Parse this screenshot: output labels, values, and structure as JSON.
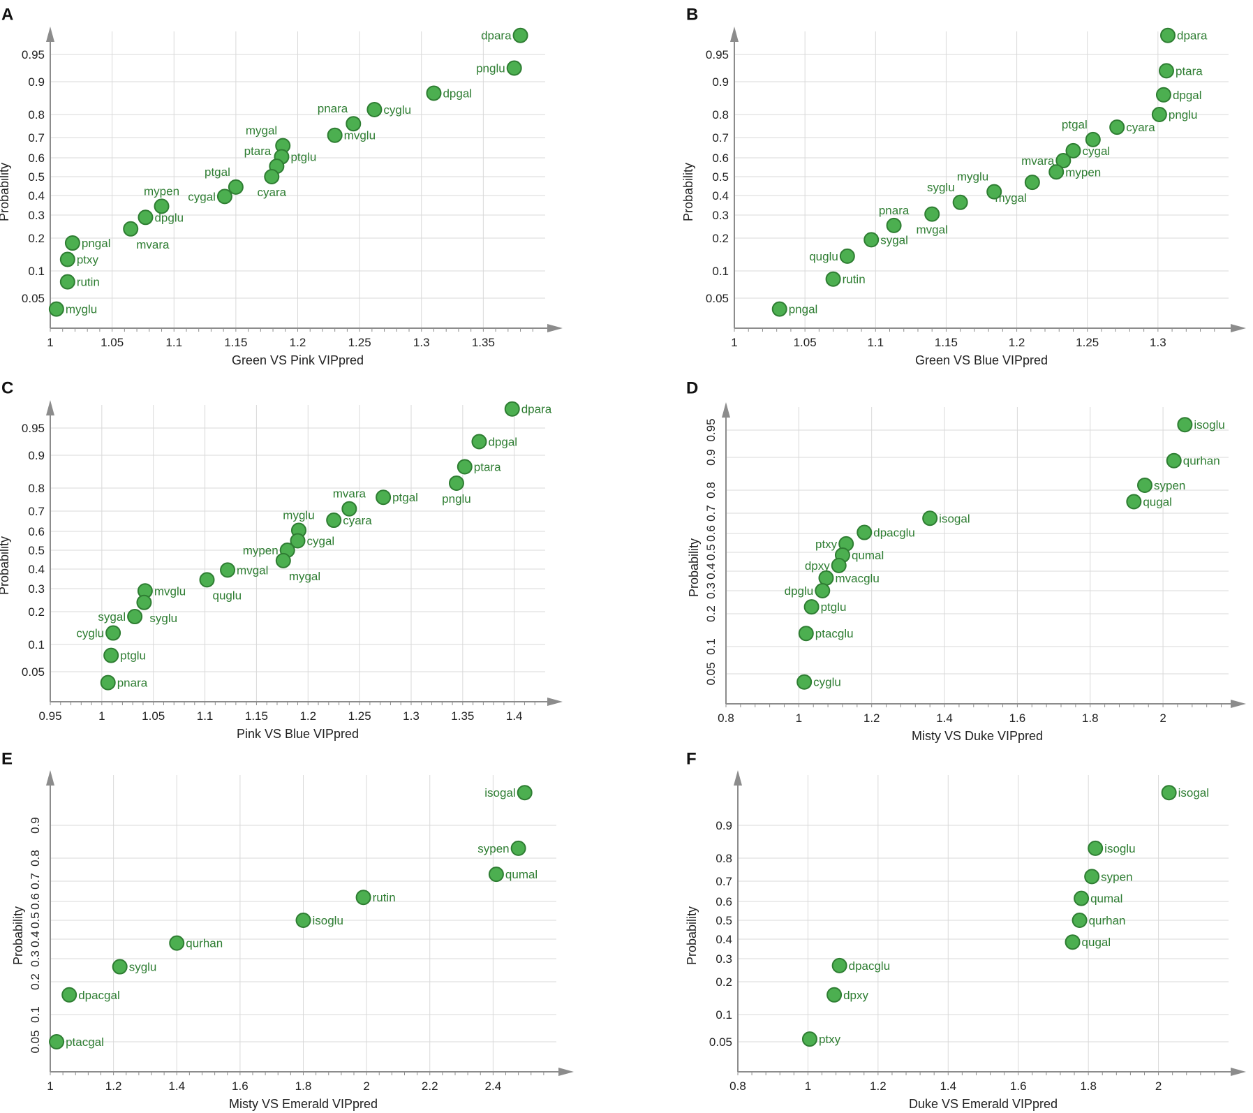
{
  "colors": {
    "point_fill": "#4caf50",
    "point_stroke": "#2e7d32",
    "label": "#2e7d32",
    "grid": "#d9d9d9",
    "axis": "#8c8c8c"
  },
  "chart_data": [
    {
      "panel": "A",
      "type": "scatter",
      "ylabel": "Probability",
      "xlabel": "Green VS Pink VIPpred",
      "xlim": [
        1,
        1.4
      ],
      "xticks": [
        "1",
        "1.05",
        "1.1",
        "1.15",
        "1.2",
        "1.25",
        "1.3",
        "1.35"
      ],
      "yticks": [
        "0.05",
        "0.1",
        "0.2",
        "0.3",
        "0.4",
        "0.5",
        "0.6",
        "0.7",
        "0.8",
        "0.9",
        "0.95"
      ],
      "points": [
        {
          "label": "dpara",
          "x": 1.38,
          "y": 0.985,
          "side": "left"
        },
        {
          "label": "pnglu",
          "x": 1.375,
          "y": 0.925,
          "side": "left"
        },
        {
          "label": "dpgal",
          "x": 1.31,
          "y": 0.865,
          "side": "right"
        },
        {
          "label": "cyglu",
          "x": 1.262,
          "y": 0.815,
          "side": "right"
        },
        {
          "label": "pnara",
          "x": 1.245,
          "y": 0.76,
          "side": "above-left"
        },
        {
          "label": "mvglu",
          "x": 1.23,
          "y": 0.71,
          "side": "right"
        },
        {
          "label": "mygal",
          "x": 1.188,
          "y": 0.66,
          "side": "above-left"
        },
        {
          "label": "ptglu",
          "x": 1.187,
          "y": 0.605,
          "side": "right"
        },
        {
          "label": "ptara",
          "x": 1.183,
          "y": 0.555,
          "side": "above-left"
        },
        {
          "label": "cyara",
          "x": 1.179,
          "y": 0.5,
          "side": "below"
        },
        {
          "label": "ptgal",
          "x": 1.15,
          "y": 0.445,
          "side": "above-left"
        },
        {
          "label": "cygal",
          "x": 1.141,
          "y": 0.395,
          "side": "left"
        },
        {
          "label": "mypen",
          "x": 1.09,
          "y": 0.345,
          "side": "above"
        },
        {
          "label": "dpglu",
          "x": 1.077,
          "y": 0.29,
          "side": "right"
        },
        {
          "label": "mvara",
          "x": 1.065,
          "y": 0.24,
          "side": "below-right"
        },
        {
          "label": "pngal",
          "x": 1.018,
          "y": 0.185,
          "side": "right"
        },
        {
          "label": "ptxy",
          "x": 1.014,
          "y": 0.135,
          "side": "right"
        },
        {
          "label": "rutin",
          "x": 1.014,
          "y": 0.08,
          "side": "right"
        },
        {
          "label": "myglu",
          "x": 1.005,
          "y": 0.03,
          "side": "right"
        }
      ]
    },
    {
      "panel": "B",
      "type": "scatter",
      "ylabel": "Probability",
      "xlabel": "Green VS Blue VIPpred",
      "xlim": [
        1,
        1.35
      ],
      "xticks": [
        "1",
        "1.05",
        "1.1",
        "1.15",
        "1.2",
        "1.25",
        "1.3"
      ],
      "yticks": [
        "0.05",
        "0.1",
        "0.2",
        "0.3",
        "0.4",
        "0.5",
        "0.6",
        "0.7",
        "0.8",
        "0.9",
        "0.95"
      ],
      "points": [
        {
          "label": "dpara",
          "x": 1.307,
          "y": 0.985,
          "side": "right"
        },
        {
          "label": "ptara",
          "x": 1.306,
          "y": 0.92,
          "side": "right"
        },
        {
          "label": "dpgal",
          "x": 1.304,
          "y": 0.86,
          "side": "right"
        },
        {
          "label": "pnglu",
          "x": 1.301,
          "y": 0.8,
          "side": "right"
        },
        {
          "label": "cyara",
          "x": 1.271,
          "y": 0.745,
          "side": "right"
        },
        {
          "label": "ptgal",
          "x": 1.254,
          "y": 0.69,
          "side": "above-left"
        },
        {
          "label": "cygal",
          "x": 1.24,
          "y": 0.635,
          "side": "right"
        },
        {
          "label": "mvara",
          "x": 1.233,
          "y": 0.585,
          "side": "left"
        },
        {
          "label": "mypen",
          "x": 1.228,
          "y": 0.525,
          "side": "right"
        },
        {
          "label": "mygal",
          "x": 1.211,
          "y": 0.47,
          "side": "below-left"
        },
        {
          "label": "myglu",
          "x": 1.184,
          "y": 0.42,
          "side": "above-left"
        },
        {
          "label": "syglu",
          "x": 1.16,
          "y": 0.365,
          "side": "above-left"
        },
        {
          "label": "mvgal",
          "x": 1.14,
          "y": 0.305,
          "side": "below"
        },
        {
          "label": "pnara",
          "x": 1.113,
          "y": 0.255,
          "side": "above"
        },
        {
          "label": "sygal",
          "x": 1.097,
          "y": 0.195,
          "side": "right"
        },
        {
          "label": "quglu",
          "x": 1.08,
          "y": 0.145,
          "side": "left"
        },
        {
          "label": "rutin",
          "x": 1.07,
          "y": 0.085,
          "side": "right"
        },
        {
          "label": "pngal",
          "x": 1.032,
          "y": 0.03,
          "side": "right"
        }
      ]
    },
    {
      "panel": "C",
      "type": "scatter",
      "ylabel": "Probability",
      "xlabel": "Pink VS Blue VIPpred",
      "xlim": [
        0.95,
        1.43
      ],
      "xticks": [
        "0.95",
        "1",
        "1.05",
        "1.1",
        "1.15",
        "1.2",
        "1.25",
        "1.3",
        "1.35",
        "1.4"
      ],
      "yticks": [
        "0.05",
        "0.1",
        "0.2",
        "0.3",
        "0.4",
        "0.5",
        "0.6",
        "0.7",
        "0.8",
        "0.9",
        "0.95"
      ],
      "points": [
        {
          "label": "dpara",
          "x": 1.398,
          "y": 0.985,
          "side": "right"
        },
        {
          "label": "dpgal",
          "x": 1.366,
          "y": 0.925,
          "side": "right"
        },
        {
          "label": "ptara",
          "x": 1.352,
          "y": 0.865,
          "side": "right"
        },
        {
          "label": "pnglu",
          "x": 1.344,
          "y": 0.815,
          "side": "below"
        },
        {
          "label": "ptgal",
          "x": 1.273,
          "y": 0.76,
          "side": "right"
        },
        {
          "label": "mvara",
          "x": 1.24,
          "y": 0.71,
          "side": "above"
        },
        {
          "label": "cyara",
          "x": 1.225,
          "y": 0.655,
          "side": "right"
        },
        {
          "label": "myglu",
          "x": 1.191,
          "y": 0.605,
          "side": "above"
        },
        {
          "label": "cygal",
          "x": 1.19,
          "y": 0.55,
          "side": "right"
        },
        {
          "label": "mypen",
          "x": 1.18,
          "y": 0.5,
          "side": "left"
        },
        {
          "label": "mygal",
          "x": 1.176,
          "y": 0.445,
          "side": "below-right"
        },
        {
          "label": "mvgal",
          "x": 1.122,
          "y": 0.395,
          "side": "right"
        },
        {
          "label": "quglu",
          "x": 1.102,
          "y": 0.345,
          "side": "below-right"
        },
        {
          "label": "mvglu",
          "x": 1.042,
          "y": 0.29,
          "side": "right"
        },
        {
          "label": "syglu",
          "x": 1.041,
          "y": 0.24,
          "side": "below-right"
        },
        {
          "label": "sygal",
          "x": 1.032,
          "y": 0.185,
          "side": "left"
        },
        {
          "label": "cyglu",
          "x": 1.011,
          "y": 0.135,
          "side": "left"
        },
        {
          "label": "ptglu",
          "x": 1.009,
          "y": 0.08,
          "side": "right"
        },
        {
          "label": "pnara",
          "x": 1.006,
          "y": 0.03,
          "side": "right"
        }
      ]
    },
    {
      "panel": "D",
      "type": "scatter",
      "ylabel": "Probability",
      "xlabel": "Misty VS Duke VIPpred",
      "xlim": [
        0.8,
        2.18
      ],
      "xticks": [
        "0.8",
        "1",
        "1.2",
        "1.4",
        "1.6",
        "1.8",
        "2"
      ],
      "yticks": [
        "0.05",
        "0.1",
        "0.2",
        "0.3",
        "0.4",
        "0.5",
        "0.6",
        "0.7",
        "0.8",
        "0.9",
        "0.95"
      ],
      "points": [
        {
          "label": "isoglu",
          "x": 2.06,
          "y": 0.96,
          "side": "right"
        },
        {
          "label": "qurhan",
          "x": 2.03,
          "y": 0.89,
          "side": "right"
        },
        {
          "label": "sypen",
          "x": 1.95,
          "y": 0.815,
          "side": "right"
        },
        {
          "label": "qugal",
          "x": 1.92,
          "y": 0.75,
          "side": "right"
        },
        {
          "label": "isogal",
          "x": 1.36,
          "y": 0.675,
          "side": "right"
        },
        {
          "label": "dpacglu",
          "x": 1.18,
          "y": 0.605,
          "side": "right"
        },
        {
          "label": "ptxy",
          "x": 1.13,
          "y": 0.545,
          "side": "left"
        },
        {
          "label": "qumal",
          "x": 1.12,
          "y": 0.485,
          "side": "right"
        },
        {
          "label": "dpxy",
          "x": 1.11,
          "y": 0.43,
          "side": "left"
        },
        {
          "label": "mvacglu",
          "x": 1.075,
          "y": 0.365,
          "side": "right"
        },
        {
          "label": "dpglu",
          "x": 1.065,
          "y": 0.3,
          "side": "left"
        },
        {
          "label": "ptglu",
          "x": 1.035,
          "y": 0.23,
          "side": "right"
        },
        {
          "label": "ptacglu",
          "x": 1.02,
          "y": 0.14,
          "side": "right"
        },
        {
          "label": "cyglu",
          "x": 1.015,
          "y": 0.035,
          "side": "right"
        }
      ]
    },
    {
      "panel": "E",
      "type": "scatter",
      "ylabel": "Probability",
      "xlabel": "Misty VS Emerald VIPpred",
      "xlim": [
        1,
        2.6
      ],
      "xticks": [
        "1",
        "1.2",
        "1.4",
        "1.6",
        "1.8",
        "2",
        "2.2",
        "2.4"
      ],
      "yticks": [
        "0.05",
        "0.1",
        "0.2",
        "0.3",
        "0.4",
        "0.5",
        "0.6",
        "0.7",
        "0.8",
        "0.9"
      ],
      "points": [
        {
          "label": "isogal",
          "x": 2.5,
          "y": 0.96,
          "side": "left"
        },
        {
          "label": "sypen",
          "x": 2.48,
          "y": 0.83,
          "side": "left"
        },
        {
          "label": "qumal",
          "x": 2.41,
          "y": 0.73,
          "side": "right"
        },
        {
          "label": "rutin",
          "x": 1.99,
          "y": 0.62,
          "side": "right"
        },
        {
          "label": "isoglu",
          "x": 1.8,
          "y": 0.5,
          "side": "right"
        },
        {
          "label": "qurhan",
          "x": 1.4,
          "y": 0.38,
          "side": "right"
        },
        {
          "label": "syglu",
          "x": 1.22,
          "y": 0.265,
          "side": "right"
        },
        {
          "label": "dpacgal",
          "x": 1.06,
          "y": 0.16,
          "side": "right"
        },
        {
          "label": "ptacgal",
          "x": 1.02,
          "y": 0.05,
          "side": "right"
        }
      ]
    },
    {
      "panel": "F",
      "type": "scatter",
      "ylabel": "Probability",
      "xlabel": "Duke VS Emerald VIPpred",
      "xlim": [
        0.8,
        2.2
      ],
      "xticks": [
        "0.8",
        "1",
        "1.2",
        "1.4",
        "1.6",
        "1.8",
        "2"
      ],
      "yticks": [
        "0.05",
        "0.1",
        "0.2",
        "0.3",
        "0.4",
        "0.5",
        "0.6",
        "0.7",
        "0.8",
        "0.9"
      ],
      "points": [
        {
          "label": "isogal",
          "x": 2.03,
          "y": 0.96,
          "side": "right"
        },
        {
          "label": "isoglu",
          "x": 1.82,
          "y": 0.83,
          "side": "right"
        },
        {
          "label": "sypen",
          "x": 1.81,
          "y": 0.72,
          "side": "right"
        },
        {
          "label": "qumal",
          "x": 1.78,
          "y": 0.615,
          "side": "right"
        },
        {
          "label": "qurhan",
          "x": 1.775,
          "y": 0.5,
          "side": "right"
        },
        {
          "label": "qugal",
          "x": 1.755,
          "y": 0.385,
          "side": "right"
        },
        {
          "label": "dpacglu",
          "x": 1.09,
          "y": 0.27,
          "side": "right"
        },
        {
          "label": "dpxy",
          "x": 1.075,
          "y": 0.16,
          "side": "right"
        },
        {
          "label": "ptxy",
          "x": 1.005,
          "y": 0.055,
          "side": "right"
        }
      ]
    }
  ]
}
